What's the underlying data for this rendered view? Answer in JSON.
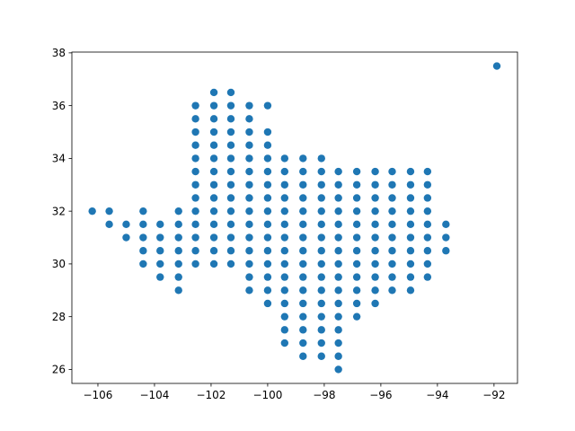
{
  "chart_data": {
    "type": "scatter",
    "title": "",
    "xlabel": "",
    "ylabel": "",
    "xlim": [
      -106.92,
      -91.17
    ],
    "ylim": [
      25.47,
      38.03
    ],
    "xticks": [
      -106,
      -104,
      -102,
      -100,
      -98,
      -96,
      -94,
      -92
    ],
    "yticks": [
      26,
      28,
      30,
      32,
      34,
      36,
      38
    ],
    "xtick_labels": [
      "−106",
      "−104",
      "−102",
      "−100",
      "−98",
      "−96",
      "−94",
      "−92"
    ],
    "ytick_labels": [
      "26",
      "28",
      "30",
      "32",
      "34",
      "36",
      "38"
    ],
    "grid": false,
    "marker_color": "#1f77b4",
    "series": [
      {
        "points": [
          [
            -106.2,
            32.0
          ],
          [
            -105.6,
            32.0
          ],
          [
            -105.6,
            31.5
          ],
          [
            -105.0,
            31.5
          ],
          [
            -105.0,
            31.0
          ],
          [
            -104.4,
            32.0
          ],
          [
            -104.4,
            31.5
          ],
          [
            -104.4,
            31.0
          ],
          [
            -104.4,
            30.5
          ],
          [
            -104.4,
            30.0
          ],
          [
            -103.8,
            31.5
          ],
          [
            -103.8,
            31.0
          ],
          [
            -103.8,
            30.5
          ],
          [
            -103.8,
            30.0
          ],
          [
            -103.8,
            29.5
          ],
          [
            -103.15,
            32.0
          ],
          [
            -103.15,
            31.5
          ],
          [
            -103.15,
            31.0
          ],
          [
            -103.15,
            30.5
          ],
          [
            -103.15,
            30.0
          ],
          [
            -103.15,
            29.5
          ],
          [
            -103.15,
            29.0
          ],
          [
            -102.55,
            36.0
          ],
          [
            -102.55,
            35.5
          ],
          [
            -102.55,
            35.0
          ],
          [
            -102.55,
            34.5
          ],
          [
            -102.55,
            34.0
          ],
          [
            -102.55,
            33.5
          ],
          [
            -102.55,
            33.0
          ],
          [
            -102.55,
            32.5
          ],
          [
            -102.55,
            32.0
          ],
          [
            -102.55,
            31.5
          ],
          [
            -102.55,
            31.0
          ],
          [
            -102.55,
            30.5
          ],
          [
            -102.55,
            30.0
          ],
          [
            -101.9,
            36.5
          ],
          [
            -101.9,
            36.0
          ],
          [
            -101.9,
            35.5
          ],
          [
            -101.9,
            35.0
          ],
          [
            -101.9,
            34.5
          ],
          [
            -101.9,
            34.0
          ],
          [
            -101.9,
            33.5
          ],
          [
            -101.9,
            33.0
          ],
          [
            -101.9,
            32.5
          ],
          [
            -101.9,
            32.0
          ],
          [
            -101.9,
            31.5
          ],
          [
            -101.9,
            31.0
          ],
          [
            -101.9,
            30.5
          ],
          [
            -101.9,
            30.0
          ],
          [
            -101.3,
            36.5
          ],
          [
            -101.3,
            36.0
          ],
          [
            -101.3,
            35.5
          ],
          [
            -101.3,
            35.0
          ],
          [
            -101.3,
            34.5
          ],
          [
            -101.3,
            34.0
          ],
          [
            -101.3,
            33.5
          ],
          [
            -101.3,
            33.0
          ],
          [
            -101.3,
            32.5
          ],
          [
            -101.3,
            32.0
          ],
          [
            -101.3,
            31.5
          ],
          [
            -101.3,
            31.0
          ],
          [
            -101.3,
            30.5
          ],
          [
            -101.3,
            30.0
          ],
          [
            -100.65,
            36.0
          ],
          [
            -100.65,
            35.5
          ],
          [
            -100.65,
            35.0
          ],
          [
            -100.65,
            34.5
          ],
          [
            -100.65,
            34.0
          ],
          [
            -100.65,
            33.5
          ],
          [
            -100.65,
            33.0
          ],
          [
            -100.65,
            32.5
          ],
          [
            -100.65,
            32.0
          ],
          [
            -100.65,
            31.5
          ],
          [
            -100.65,
            31.0
          ],
          [
            -100.65,
            30.5
          ],
          [
            -100.65,
            30.0
          ],
          [
            -100.65,
            29.5
          ],
          [
            -100.65,
            29.0
          ],
          [
            -100.0,
            36.0
          ],
          [
            -100.0,
            35.0
          ],
          [
            -100.0,
            34.5
          ],
          [
            -100.0,
            34.0
          ],
          [
            -100.0,
            33.5
          ],
          [
            -100.0,
            33.0
          ],
          [
            -100.0,
            32.5
          ],
          [
            -100.0,
            32.0
          ],
          [
            -100.0,
            31.5
          ],
          [
            -100.0,
            31.0
          ],
          [
            -100.0,
            30.5
          ],
          [
            -100.0,
            30.0
          ],
          [
            -100.0,
            29.5
          ],
          [
            -100.0,
            29.0
          ],
          [
            -100.0,
            28.5
          ],
          [
            -99.4,
            34.0
          ],
          [
            -99.4,
            33.5
          ],
          [
            -99.4,
            33.0
          ],
          [
            -99.4,
            32.5
          ],
          [
            -99.4,
            32.0
          ],
          [
            -99.4,
            31.5
          ],
          [
            -99.4,
            31.0
          ],
          [
            -99.4,
            30.5
          ],
          [
            -99.4,
            30.0
          ],
          [
            -99.4,
            29.5
          ],
          [
            -99.4,
            29.0
          ],
          [
            -99.4,
            28.5
          ],
          [
            -99.4,
            28.0
          ],
          [
            -99.4,
            27.5
          ],
          [
            -99.4,
            27.0
          ],
          [
            -98.75,
            34.0
          ],
          [
            -98.75,
            33.5
          ],
          [
            -98.75,
            33.0
          ],
          [
            -98.75,
            32.5
          ],
          [
            -98.75,
            32.0
          ],
          [
            -98.75,
            31.5
          ],
          [
            -98.75,
            31.0
          ],
          [
            -98.75,
            30.5
          ],
          [
            -98.75,
            30.0
          ],
          [
            -98.75,
            29.5
          ],
          [
            -98.75,
            29.0
          ],
          [
            -98.75,
            28.5
          ],
          [
            -98.75,
            28.0
          ],
          [
            -98.75,
            27.5
          ],
          [
            -98.75,
            27.0
          ],
          [
            -98.75,
            26.5
          ],
          [
            -98.1,
            34.0
          ],
          [
            -98.1,
            33.5
          ],
          [
            -98.1,
            33.0
          ],
          [
            -98.1,
            32.5
          ],
          [
            -98.1,
            32.0
          ],
          [
            -98.1,
            31.5
          ],
          [
            -98.1,
            31.0
          ],
          [
            -98.1,
            30.5
          ],
          [
            -98.1,
            30.0
          ],
          [
            -98.1,
            29.5
          ],
          [
            -98.1,
            29.0
          ],
          [
            -98.1,
            28.5
          ],
          [
            -98.1,
            28.0
          ],
          [
            -98.1,
            27.5
          ],
          [
            -98.1,
            27.0
          ],
          [
            -98.1,
            26.5
          ],
          [
            -97.5,
            33.5
          ],
          [
            -97.5,
            33.0
          ],
          [
            -97.5,
            32.5
          ],
          [
            -97.5,
            32.0
          ],
          [
            -97.5,
            31.5
          ],
          [
            -97.5,
            31.0
          ],
          [
            -97.5,
            30.5
          ],
          [
            -97.5,
            30.0
          ],
          [
            -97.5,
            29.5
          ],
          [
            -97.5,
            29.0
          ],
          [
            -97.5,
            28.5
          ],
          [
            -97.5,
            28.0
          ],
          [
            -97.5,
            27.5
          ],
          [
            -97.5,
            27.0
          ],
          [
            -97.5,
            26.5
          ],
          [
            -97.5,
            26.0
          ],
          [
            -96.85,
            33.5
          ],
          [
            -96.85,
            33.0
          ],
          [
            -96.85,
            32.5
          ],
          [
            -96.85,
            32.0
          ],
          [
            -96.85,
            31.5
          ],
          [
            -96.85,
            31.0
          ],
          [
            -96.85,
            30.5
          ],
          [
            -96.85,
            30.0
          ],
          [
            -96.85,
            29.5
          ],
          [
            -96.85,
            29.0
          ],
          [
            -96.85,
            28.5
          ],
          [
            -96.85,
            28.0
          ],
          [
            -96.2,
            33.5
          ],
          [
            -96.2,
            33.0
          ],
          [
            -96.2,
            32.5
          ],
          [
            -96.2,
            32.0
          ],
          [
            -96.2,
            31.5
          ],
          [
            -96.2,
            31.0
          ],
          [
            -96.2,
            30.5
          ],
          [
            -96.2,
            30.0
          ],
          [
            -96.2,
            29.5
          ],
          [
            -96.2,
            29.0
          ],
          [
            -96.2,
            28.5
          ],
          [
            -95.6,
            33.5
          ],
          [
            -95.6,
            33.0
          ],
          [
            -95.6,
            32.5
          ],
          [
            -95.6,
            32.0
          ],
          [
            -95.6,
            31.5
          ],
          [
            -95.6,
            31.0
          ],
          [
            -95.6,
            30.5
          ],
          [
            -95.6,
            30.0
          ],
          [
            -95.6,
            29.5
          ],
          [
            -95.6,
            29.0
          ],
          [
            -94.95,
            33.5
          ],
          [
            -94.95,
            33.0
          ],
          [
            -94.95,
            32.5
          ],
          [
            -94.95,
            32.0
          ],
          [
            -94.95,
            31.5
          ],
          [
            -94.95,
            31.0
          ],
          [
            -94.95,
            30.5
          ],
          [
            -94.95,
            30.0
          ],
          [
            -94.95,
            29.5
          ],
          [
            -94.95,
            29.0
          ],
          [
            -94.35,
            33.5
          ],
          [
            -94.35,
            33.0
          ],
          [
            -94.35,
            32.5
          ],
          [
            -94.35,
            32.0
          ],
          [
            -94.35,
            31.5
          ],
          [
            -94.35,
            31.0
          ],
          [
            -94.35,
            30.5
          ],
          [
            -94.35,
            30.0
          ],
          [
            -94.35,
            29.5
          ],
          [
            -93.7,
            31.5
          ],
          [
            -93.7,
            31.0
          ],
          [
            -93.7,
            30.5
          ],
          [
            -91.9,
            37.5
          ]
        ]
      }
    ]
  }
}
